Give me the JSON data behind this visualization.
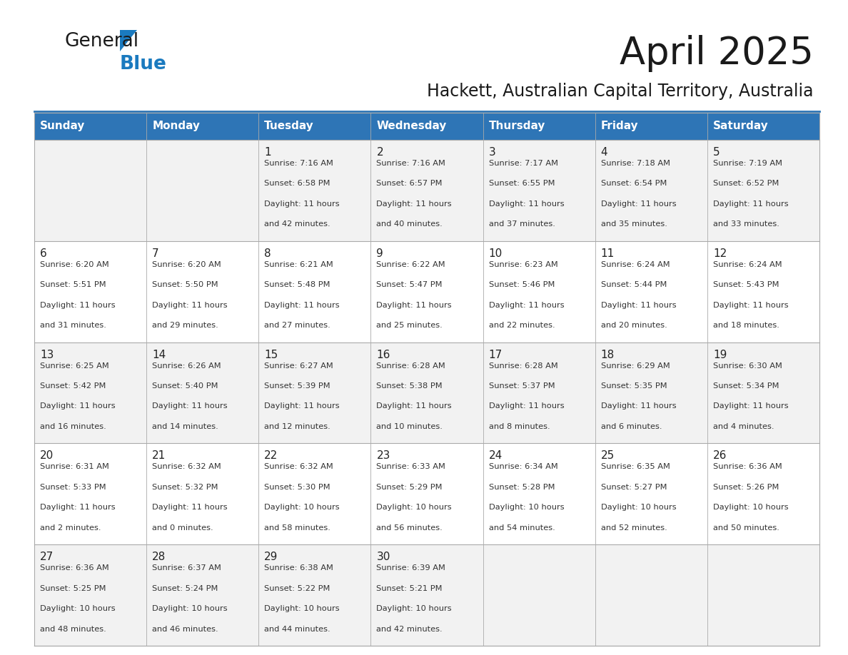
{
  "title": "April 2025",
  "subtitle": "Hackett, Australian Capital Territory, Australia",
  "days_of_week": [
    "Sunday",
    "Monday",
    "Tuesday",
    "Wednesday",
    "Thursday",
    "Friday",
    "Saturday"
  ],
  "header_bg": "#2E75B6",
  "header_text": "#FFFFFF",
  "row_bg_even": "#F2F2F2",
  "row_bg_odd": "#FFFFFF",
  "cell_border": "#AAAAAA",
  "day_number_color": "#222222",
  "detail_text_color": "#333333",
  "calendar_data": [
    [
      null,
      null,
      {
        "day": 1,
        "sunrise": "7:16 AM",
        "sunset": "6:58 PM",
        "daylight": "11 hours and 42 minutes."
      },
      {
        "day": 2,
        "sunrise": "7:16 AM",
        "sunset": "6:57 PM",
        "daylight": "11 hours and 40 minutes."
      },
      {
        "day": 3,
        "sunrise": "7:17 AM",
        "sunset": "6:55 PM",
        "daylight": "11 hours and 37 minutes."
      },
      {
        "day": 4,
        "sunrise": "7:18 AM",
        "sunset": "6:54 PM",
        "daylight": "11 hours and 35 minutes."
      },
      {
        "day": 5,
        "sunrise": "7:19 AM",
        "sunset": "6:52 PM",
        "daylight": "11 hours and 33 minutes."
      }
    ],
    [
      {
        "day": 6,
        "sunrise": "6:20 AM",
        "sunset": "5:51 PM",
        "daylight": "11 hours and 31 minutes."
      },
      {
        "day": 7,
        "sunrise": "6:20 AM",
        "sunset": "5:50 PM",
        "daylight": "11 hours and 29 minutes."
      },
      {
        "day": 8,
        "sunrise": "6:21 AM",
        "sunset": "5:48 PM",
        "daylight": "11 hours and 27 minutes."
      },
      {
        "day": 9,
        "sunrise": "6:22 AM",
        "sunset": "5:47 PM",
        "daylight": "11 hours and 25 minutes."
      },
      {
        "day": 10,
        "sunrise": "6:23 AM",
        "sunset": "5:46 PM",
        "daylight": "11 hours and 22 minutes."
      },
      {
        "day": 11,
        "sunrise": "6:24 AM",
        "sunset": "5:44 PM",
        "daylight": "11 hours and 20 minutes."
      },
      {
        "day": 12,
        "sunrise": "6:24 AM",
        "sunset": "5:43 PM",
        "daylight": "11 hours and 18 minutes."
      }
    ],
    [
      {
        "day": 13,
        "sunrise": "6:25 AM",
        "sunset": "5:42 PM",
        "daylight": "11 hours and 16 minutes."
      },
      {
        "day": 14,
        "sunrise": "6:26 AM",
        "sunset": "5:40 PM",
        "daylight": "11 hours and 14 minutes."
      },
      {
        "day": 15,
        "sunrise": "6:27 AM",
        "sunset": "5:39 PM",
        "daylight": "11 hours and 12 minutes."
      },
      {
        "day": 16,
        "sunrise": "6:28 AM",
        "sunset": "5:38 PM",
        "daylight": "11 hours and 10 minutes."
      },
      {
        "day": 17,
        "sunrise": "6:28 AM",
        "sunset": "5:37 PM",
        "daylight": "11 hours and 8 minutes."
      },
      {
        "day": 18,
        "sunrise": "6:29 AM",
        "sunset": "5:35 PM",
        "daylight": "11 hours and 6 minutes."
      },
      {
        "day": 19,
        "sunrise": "6:30 AM",
        "sunset": "5:34 PM",
        "daylight": "11 hours and 4 minutes."
      }
    ],
    [
      {
        "day": 20,
        "sunrise": "6:31 AM",
        "sunset": "5:33 PM",
        "daylight": "11 hours and 2 minutes."
      },
      {
        "day": 21,
        "sunrise": "6:32 AM",
        "sunset": "5:32 PM",
        "daylight": "11 hours and 0 minutes."
      },
      {
        "day": 22,
        "sunrise": "6:32 AM",
        "sunset": "5:30 PM",
        "daylight": "10 hours and 58 minutes."
      },
      {
        "day": 23,
        "sunrise": "6:33 AM",
        "sunset": "5:29 PM",
        "daylight": "10 hours and 56 minutes."
      },
      {
        "day": 24,
        "sunrise": "6:34 AM",
        "sunset": "5:28 PM",
        "daylight": "10 hours and 54 minutes."
      },
      {
        "day": 25,
        "sunrise": "6:35 AM",
        "sunset": "5:27 PM",
        "daylight": "10 hours and 52 minutes."
      },
      {
        "day": 26,
        "sunrise": "6:36 AM",
        "sunset": "5:26 PM",
        "daylight": "10 hours and 50 minutes."
      }
    ],
    [
      {
        "day": 27,
        "sunrise": "6:36 AM",
        "sunset": "5:25 PM",
        "daylight": "10 hours and 48 minutes."
      },
      {
        "day": 28,
        "sunrise": "6:37 AM",
        "sunset": "5:24 PM",
        "daylight": "10 hours and 46 minutes."
      },
      {
        "day": 29,
        "sunrise": "6:38 AM",
        "sunset": "5:22 PM",
        "daylight": "10 hours and 44 minutes."
      },
      {
        "day": 30,
        "sunrise": "6:39 AM",
        "sunset": "5:21 PM",
        "daylight": "10 hours and 42 minutes."
      },
      null,
      null,
      null
    ]
  ],
  "logo_color_general": "#1a1a1a",
  "logo_color_blue": "#1a7abf",
  "logo_triangle_color": "#1a7abf"
}
